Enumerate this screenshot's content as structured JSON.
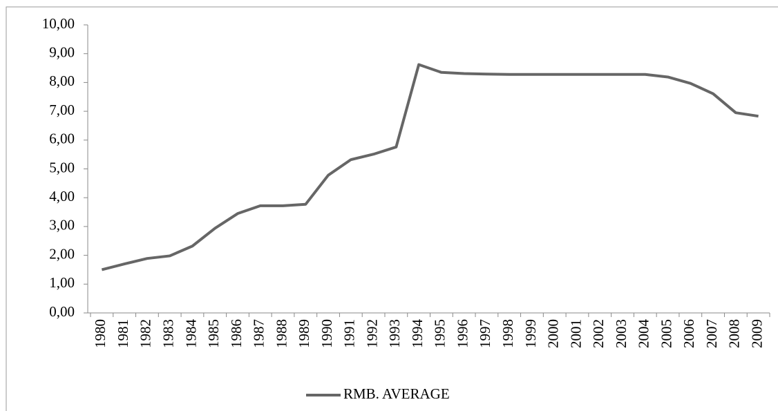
{
  "chart_data": {
    "type": "line",
    "categories": [
      "1980",
      "1981",
      "1982",
      "1983",
      "1984",
      "1985",
      "1986",
      "1987",
      "1988",
      "1989",
      "1990",
      "1991",
      "1992",
      "1993",
      "1994",
      "1995",
      "1996",
      "1997",
      "1998",
      "1999",
      "2000",
      "2001",
      "2002",
      "2003",
      "2004",
      "2005",
      "2006",
      "2007",
      "2008",
      "2009"
    ],
    "series": [
      {
        "name": "RMB. AVERAGE",
        "color": "#666666",
        "values": [
          1.5,
          1.7,
          1.89,
          1.98,
          2.32,
          2.94,
          3.45,
          3.72,
          3.72,
          3.77,
          4.78,
          5.32,
          5.51,
          5.76,
          8.62,
          8.35,
          8.31,
          8.29,
          8.28,
          8.28,
          8.28,
          8.28,
          8.28,
          8.28,
          8.28,
          8.19,
          7.97,
          7.61,
          6.95,
          6.83
        ]
      }
    ],
    "ylim": [
      0,
      10
    ],
    "yticks": [
      {
        "value": 0,
        "label": "0,00"
      },
      {
        "value": 1,
        "label": "1,00"
      },
      {
        "value": 2,
        "label": "2,00"
      },
      {
        "value": 3,
        "label": "3,00"
      },
      {
        "value": 4,
        "label": "4,00"
      },
      {
        "value": 5,
        "label": "5,00"
      },
      {
        "value": 6,
        "label": "6,00"
      },
      {
        "value": 7,
        "label": "7,00"
      },
      {
        "value": 8,
        "label": "8,00"
      },
      {
        "value": 9,
        "label": "9,00"
      },
      {
        "value": 10,
        "label": "10,00"
      }
    ],
    "grid": false,
    "legend": "bottom"
  }
}
